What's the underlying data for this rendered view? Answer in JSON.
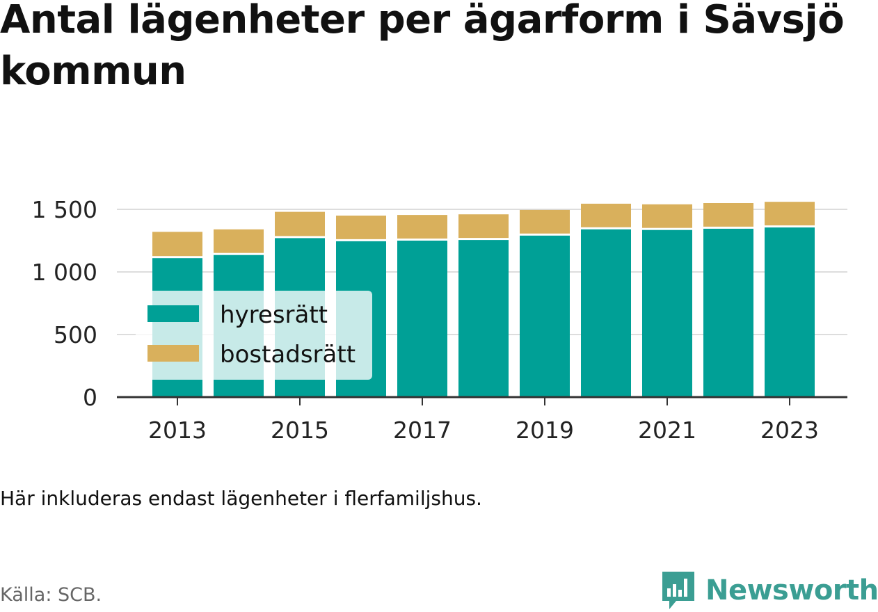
{
  "title": "Antal lägenheter per ägarform i Sävsjö kommun",
  "note": "Här inkluderas endast lägenheter i flerfamiljshus.",
  "source": "Källa: SCB.",
  "logo_text": "Newsworthy",
  "colors": {
    "hyresratt": "#00a096",
    "bostadsratt": "#d9b05c",
    "axis": "#333333",
    "grid": "#dddddd",
    "brand": "#3b9e93"
  },
  "chart_data": {
    "type": "bar",
    "stacked": true,
    "categories": [
      "2013",
      "2014",
      "2015",
      "2016",
      "2017",
      "2018",
      "2019",
      "2020",
      "2021",
      "2022",
      "2023"
    ],
    "x_tick_labels": [
      "2013",
      "2015",
      "2017",
      "2019",
      "2021",
      "2023"
    ],
    "series": [
      {
        "name": "hyresrätt",
        "values": [
          1110,
          1135,
          1270,
          1245,
          1250,
          1255,
          1290,
          1340,
          1335,
          1345,
          1355
        ]
      },
      {
        "name": "bostadsrätt",
        "values": [
          210,
          205,
          210,
          205,
          205,
          205,
          205,
          205,
          205,
          205,
          205
        ]
      }
    ],
    "ylim": [
      0,
      1650
    ],
    "y_ticks": [
      0,
      500,
      1000,
      1500
    ],
    "y_tick_labels": [
      "0",
      "500",
      "1 000",
      "1 500"
    ],
    "grid": true,
    "legend_position": "bottom-left inside plot",
    "title": "Antal lägenheter per ägarform i Sävsjö kommun"
  }
}
